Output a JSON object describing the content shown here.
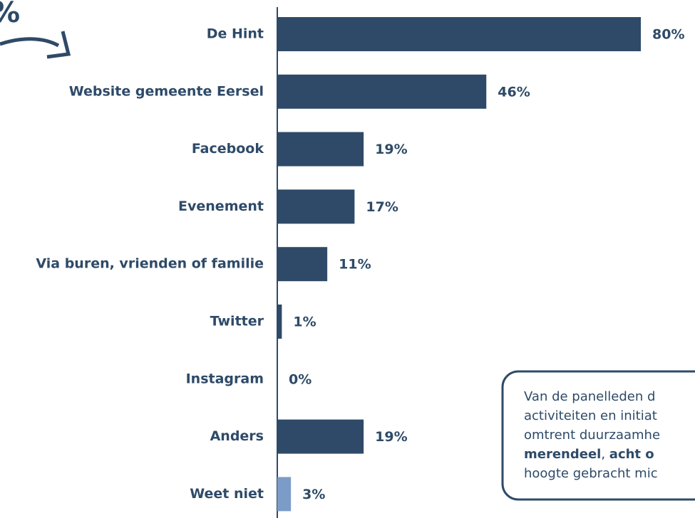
{
  "chart_data": {
    "type": "bar",
    "orientation": "horizontal",
    "categories": [
      "De Hint",
      "Website gemeente Eersel",
      "Facebook",
      "Evenement",
      "Via buren, vrienden of familie",
      "Twitter",
      "Instagram",
      "Anders",
      "Weet niet"
    ],
    "values": [
      80,
      46,
      19,
      17,
      11,
      1,
      0,
      19,
      3
    ],
    "value_labels": [
      "80%",
      "46%",
      "19%",
      "17%",
      "11%",
      "1%",
      "0%",
      "19%",
      "3%"
    ],
    "colors": [
      "#2e4a68",
      "#2e4a68",
      "#2e4a68",
      "#2e4a68",
      "#2e4a68",
      "#2e4a68",
      "#2e4a68",
      "#2e4a68",
      "#7b9cc6"
    ],
    "xlim": [
      0,
      100
    ],
    "annotation": "%",
    "callout": {
      "lines": [
        [
          {
            "text": "Van de panelleden d",
            "bold": false
          }
        ],
        [
          {
            "text": "activiteiten en initiat",
            "bold": false
          }
        ],
        [
          {
            "text": "omtrent duurzaamhe",
            "bold": false
          }
        ],
        [
          {
            "text": "merendeel",
            "bold": true
          },
          {
            "text": ", ",
            "bold": false
          },
          {
            "text": "acht o",
            "bold": true
          }
        ],
        [
          {
            "text": "hoogte gebracht mic",
            "bold": false
          }
        ]
      ]
    }
  }
}
